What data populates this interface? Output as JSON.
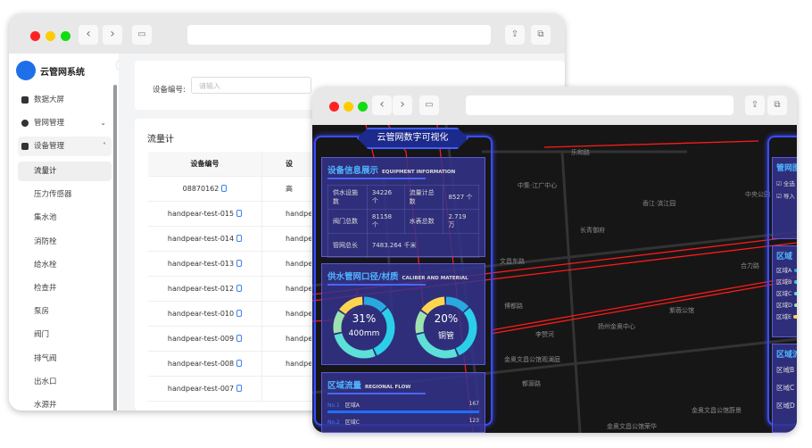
{
  "admin": {
    "app_name": "云管网系统",
    "menu": [
      {
        "label": "数据大屏"
      },
      {
        "label": "管网管理",
        "expanded": false
      },
      {
        "label": "设备管理",
        "expanded": true
      }
    ],
    "submenu": [
      "流量计",
      "压力传感器",
      "集水池",
      "消防栓",
      "给水栓",
      "检查井",
      "泵房",
      "阀门",
      "排气阀",
      "出水口",
      "水源井"
    ],
    "active_submenu": "流量计",
    "filter": {
      "label": "设备编号:",
      "placeholder": "请输入"
    },
    "card_title": "流量计",
    "table": {
      "headers": [
        "设备编号",
        "设"
      ],
      "rows": [
        [
          "08870162",
          "高"
        ],
        [
          "handpear-test-015",
          "handpe"
        ],
        [
          "handpear-test-014",
          "handpe"
        ],
        [
          "handpear-test-013",
          "handpe"
        ],
        [
          "handpear-test-012",
          "handpe"
        ],
        [
          "handpear-test-010",
          "handpe"
        ],
        [
          "handpear-test-009",
          "handpe"
        ],
        [
          "handpear-test-008",
          "handpe"
        ],
        [
          "handpear-test-007",
          ""
        ]
      ]
    }
  },
  "dashboard": {
    "title": "云管网数字可视化",
    "equipment": {
      "title": "设备信息展示",
      "subtitle": "EQUIPMENT INFORMATION",
      "rows": [
        [
          "供水设施数",
          "34226 个",
          "流量计总数",
          "8527 个"
        ],
        [
          "阀门总数",
          "81158 个",
          "水表总数",
          "2.719 万"
        ],
        [
          "管网总长",
          "7483.264 千米"
        ]
      ]
    },
    "caliber": {
      "title": "供水管网口径/材质",
      "subtitle": "CALIBER AND MATERIAL",
      "donuts": [
        {
          "percent": "31%",
          "label": "400mm",
          "value": 31
        },
        {
          "percent": "20%",
          "label": "铜管",
          "value": 20
        }
      ]
    },
    "flow": {
      "title": "区域流量",
      "subtitle": "REGIONAL FLOW",
      "items": [
        {
          "no": "No.1",
          "name": "区域A",
          "value": "167"
        },
        {
          "no": "No.2",
          "name": "区域C",
          "value": "123"
        }
      ]
    },
    "right": {
      "layer_title": "管网图",
      "checks": [
        "全选",
        "导入"
      ],
      "region_title": "区域",
      "regions": [
        "区域A",
        "区域B",
        "区域C",
        "区域D",
        "区域E"
      ],
      "zero": "0",
      "flow_title": "区域流",
      "flow_regions": [
        "区域B",
        "区域C",
        "区域D"
      ]
    },
    "map_labels": [
      "乐和路",
      "中集·江广中心",
      "香江·滨江园",
      "中央公园",
      "长青御府",
      "文昌东路",
      "合力路",
      "紫薇公馆",
      "扬州金奥中心",
      "李赞河",
      "金奥文昌公馆观澜庭",
      "都源路",
      "金奥文昌公馆蔚景",
      "金奥文昌公馆荣华",
      "博都路"
    ],
    "colors": {
      "pipe": "#ff1a1a",
      "panel": "#34328c",
      "accent": "#4fb4ff"
    }
  }
}
